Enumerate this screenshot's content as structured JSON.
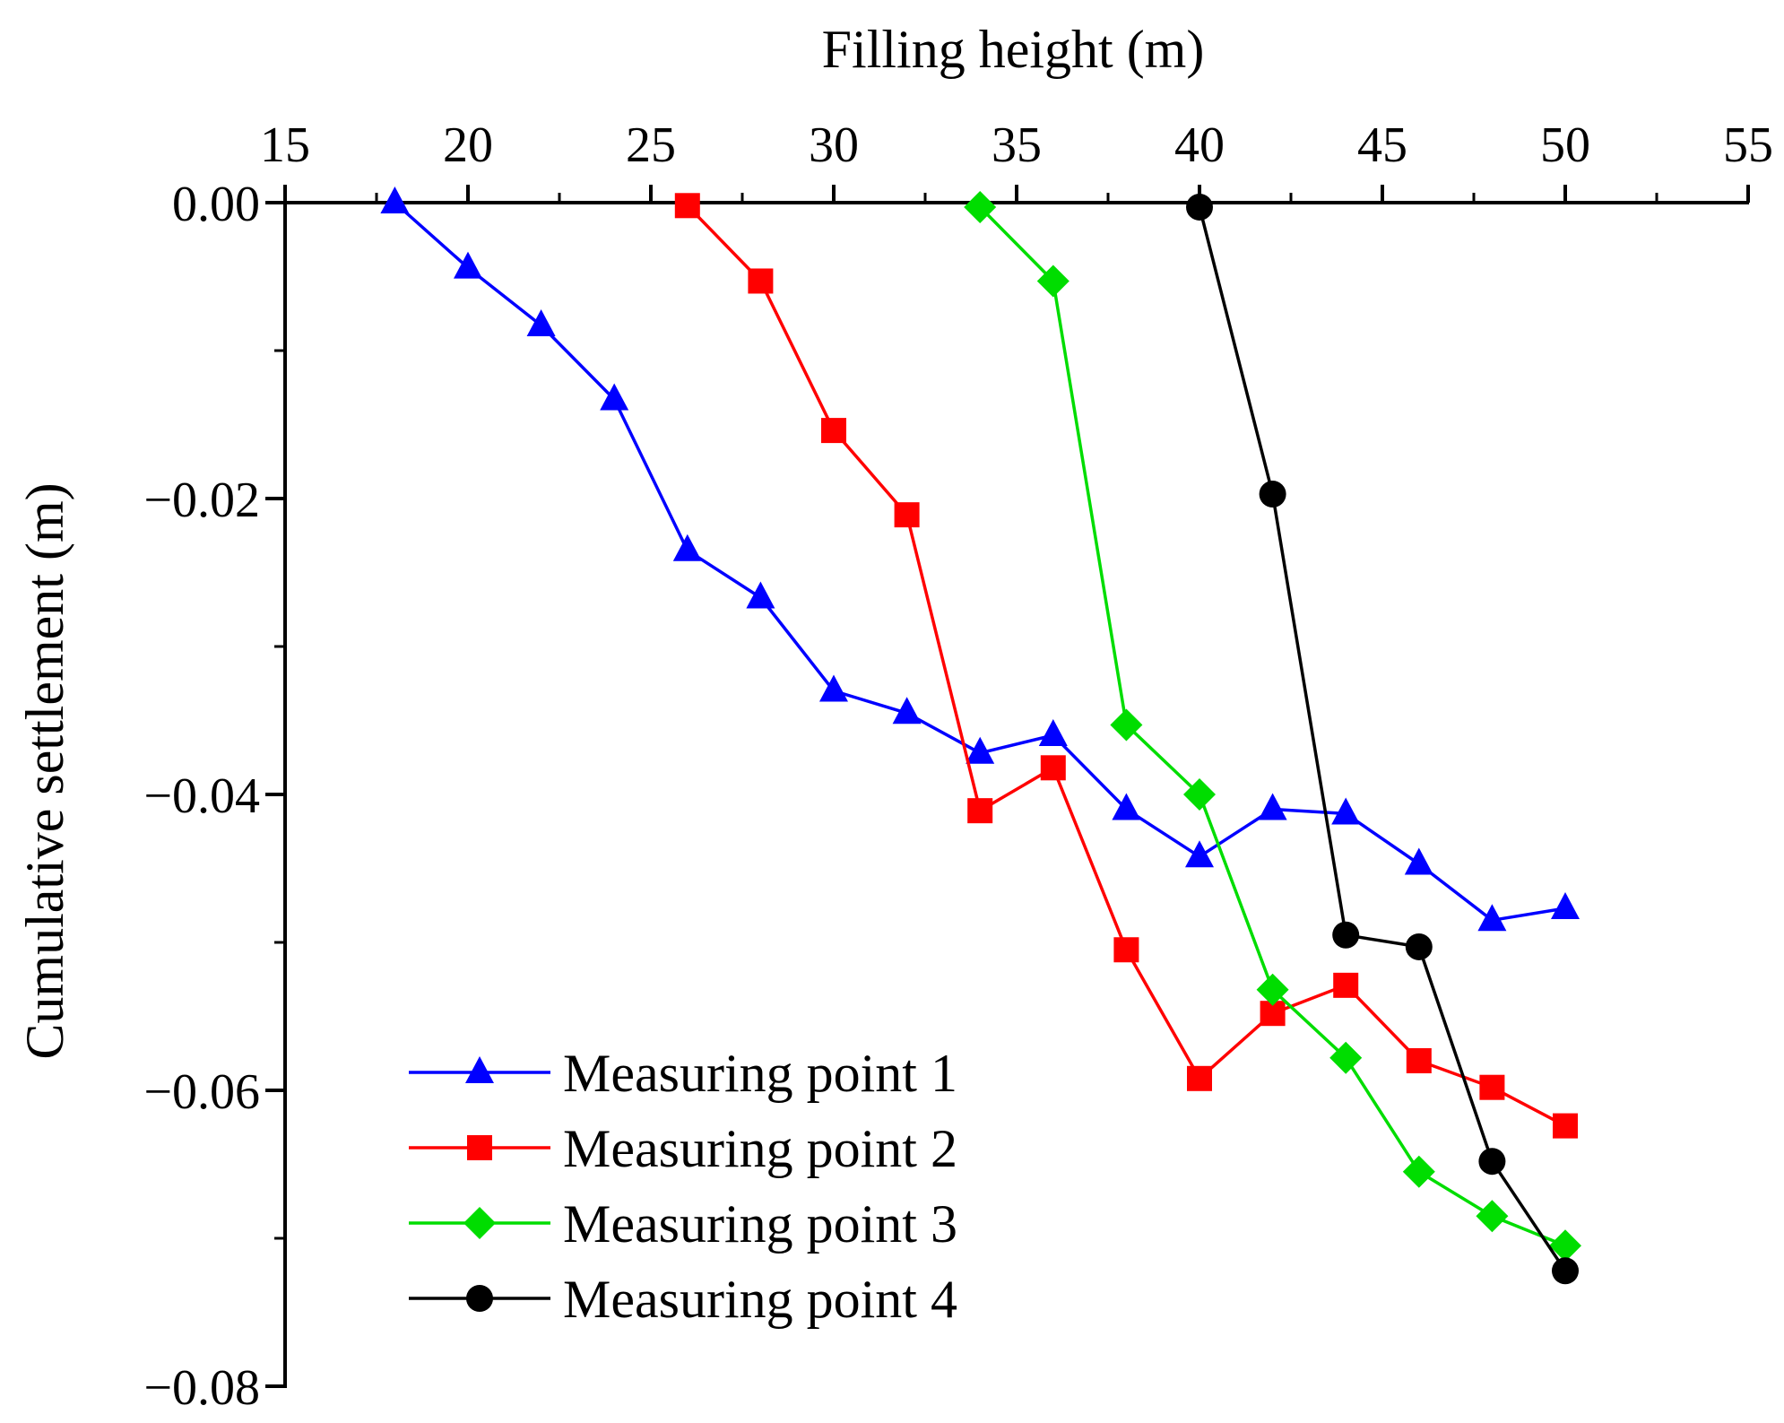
{
  "chart_data": {
    "type": "line",
    "xlabel": "Filling height (m)",
    "ylabel": "Cumulative settlement (m)",
    "xlim": [
      15,
      55
    ],
    "ylim": [
      -0.08,
      0.0
    ],
    "x_ticks": [
      15,
      20,
      25,
      30,
      35,
      40,
      45,
      50,
      55
    ],
    "x_tick_labels": [
      "15",
      "20",
      "25",
      "30",
      "35",
      "40",
      "45",
      "50",
      "55"
    ],
    "y_ticks": [
      0.0,
      -0.02,
      -0.04,
      -0.06,
      -0.08
    ],
    "y_tick_labels": [
      "0.00",
      "−0.02",
      "−0.04",
      "−0.06",
      "−0.08"
    ],
    "x_axis_position": "top",
    "grid": false,
    "legend_position": "bottom-left",
    "series": [
      {
        "name": "Measuring point 1",
        "color": "#0000ff",
        "marker": "triangle",
        "x": [
          18,
          20,
          22,
          24,
          26,
          28,
          30,
          32,
          34,
          36,
          38,
          40,
          42,
          44,
          46,
          48,
          50
        ],
        "y": [
          0.0,
          -0.0044,
          -0.0083,
          -0.0133,
          -0.0235,
          -0.0267,
          -0.033,
          -0.0345,
          -0.0372,
          -0.036,
          -0.041,
          -0.0442,
          -0.041,
          -0.0413,
          -0.0447,
          -0.0485,
          -0.0477
        ]
      },
      {
        "name": "Measuring point 2",
        "color": "#ff0000",
        "marker": "square",
        "x": [
          26,
          28,
          30,
          32,
          34,
          36,
          38,
          40,
          42,
          44,
          46,
          48,
          50
        ],
        "y": [
          -0.0002,
          -0.0053,
          -0.0154,
          -0.0211,
          -0.0411,
          -0.0382,
          -0.0505,
          -0.0592,
          -0.0548,
          -0.0529,
          -0.058,
          -0.0598,
          -0.0624
        ]
      },
      {
        "name": "Measuring point 3",
        "color": "#00dd00",
        "marker": "diamond",
        "x": [
          34,
          36,
          38,
          40,
          42,
          44,
          46,
          48,
          50
        ],
        "y": [
          -0.0003,
          -0.0053,
          -0.0353,
          -0.04,
          -0.0532,
          -0.0578,
          -0.0655,
          -0.0685,
          -0.0705
        ]
      },
      {
        "name": "Measuring point 4",
        "color": "#000000",
        "marker": "circle",
        "x": [
          40,
          42,
          44,
          46,
          48,
          50
        ],
        "y": [
          -0.0003,
          -0.0197,
          -0.0495,
          -0.0503,
          -0.0648,
          -0.0722
        ]
      }
    ]
  }
}
